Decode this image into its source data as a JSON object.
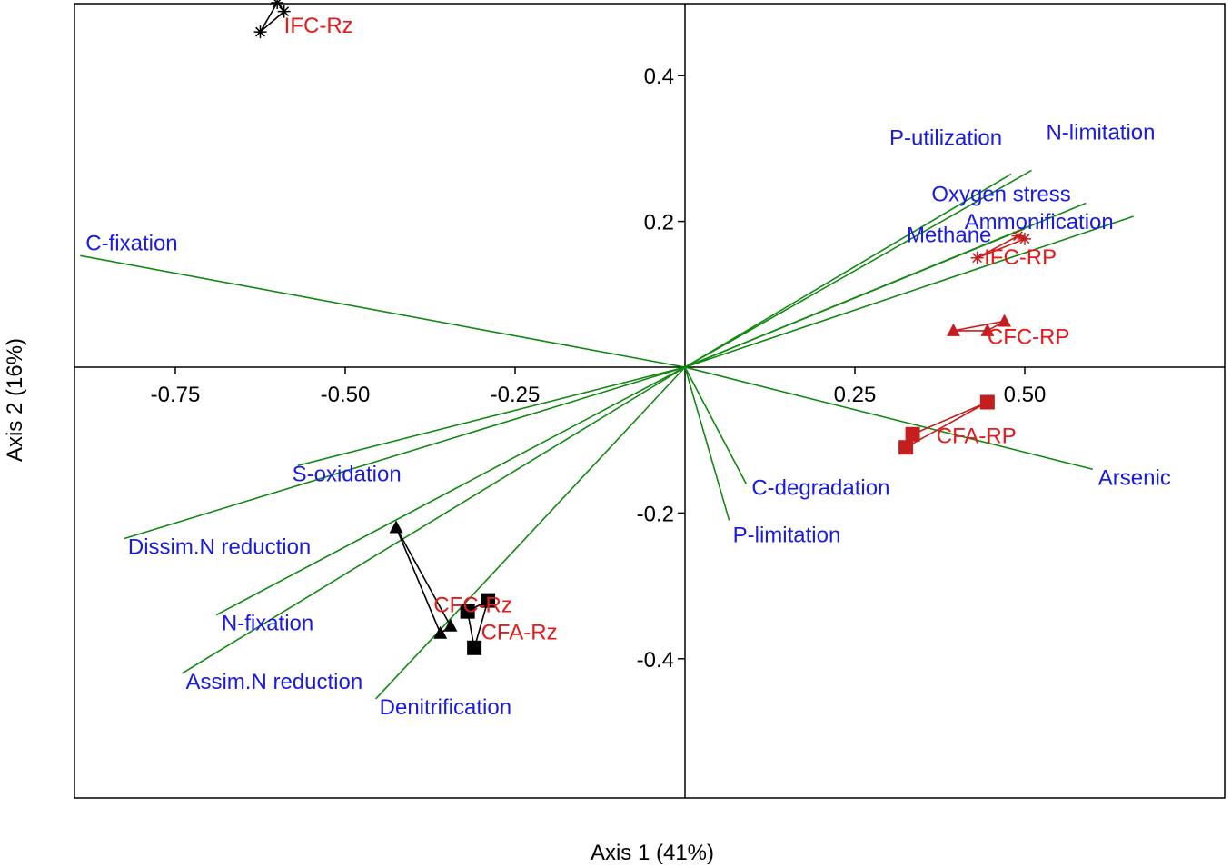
{
  "chart_data": {
    "type": "scatter",
    "subtype": "ordination biplot",
    "xlabel": "Axis 1 (41%)",
    "ylabel": "Axis 2 (16%)",
    "xlim": [
      -0.9,
      0.8
    ],
    "ylim": [
      -0.59,
      0.5
    ],
    "x_ticks": [
      {
        "value": -0.75,
        "label": "-0.75"
      },
      {
        "value": -0.5,
        "label": "-0.50"
      },
      {
        "value": -0.25,
        "label": "-0.25"
      },
      {
        "value": 0.25,
        "label": "0.25"
      },
      {
        "value": 0.5,
        "label": "0.50"
      }
    ],
    "y_ticks": [
      {
        "value": 0.4,
        "label": "0.4"
      },
      {
        "value": 0.2,
        "label": "0.2"
      },
      {
        "value": -0.2,
        "label": "-0.2"
      },
      {
        "value": -0.4,
        "label": "-0.4"
      }
    ],
    "colors": {
      "vector_line": "#118811",
      "vector_label": "#1a1ae6",
      "site_label": "#e61a1a",
      "rp_marker": "#c41e1e",
      "rz_marker": "#000000",
      "axis": "#000000"
    },
    "vectors": [
      {
        "name": "C-fixation",
        "x": -0.89,
        "y": 0.153
      },
      {
        "name": "P-utilization",
        "x": 0.48,
        "y": 0.265
      },
      {
        "name": "N-limitation",
        "x": 0.51,
        "y": 0.27
      },
      {
        "name": "Oxygen stress",
        "x": 0.59,
        "y": 0.225
      },
      {
        "name": "Ammonification",
        "x": 0.66,
        "y": 0.207
      },
      {
        "name": "Methane",
        "x": 0.5,
        "y": 0.19
      },
      {
        "name": "Arsenic",
        "x": 0.6,
        "y": -0.14
      },
      {
        "name": "C-degradation",
        "x": 0.09,
        "y": -0.16
      },
      {
        "name": "P-limitation",
        "x": 0.065,
        "y": -0.21
      },
      {
        "name": "S-oxidation",
        "x": -0.57,
        "y": -0.135
      },
      {
        "name": "Dissim.N reduction",
        "x": -0.825,
        "y": -0.235
      },
      {
        "name": "N-fixation",
        "x": -0.69,
        "y": -0.34
      },
      {
        "name": "Assim.N reduction",
        "x": -0.74,
        "y": -0.42
      },
      {
        "name": "Denitrification",
        "x": -0.455,
        "y": -0.455
      }
    ],
    "groups": [
      {
        "label": "IFC-Rz",
        "marker": "asterisk",
        "color": "#000000",
        "points": [
          [
            -0.625,
            0.46
          ],
          [
            -0.6,
            0.5
          ],
          [
            -0.59,
            0.488
          ]
        ],
        "label_at": [
          -0.59,
          0.47
        ]
      },
      {
        "label": "CFC-Rz",
        "marker": "triangle",
        "color": "#000000",
        "points": [
          [
            -0.425,
            -0.22
          ],
          [
            -0.36,
            -0.365
          ],
          [
            -0.345,
            -0.355
          ]
        ],
        "label_at": [
          -0.37,
          -0.325
        ]
      },
      {
        "label": "CFA-Rz",
        "marker": "square",
        "color": "#000000",
        "points": [
          [
            -0.32,
            -0.335
          ],
          [
            -0.31,
            -0.385
          ],
          [
            -0.29,
            -0.32
          ]
        ],
        "label_at": [
          -0.3,
          -0.362
        ]
      },
      {
        "label": "IFC-RP",
        "marker": "asterisk",
        "color": "#c41e1e",
        "points": [
          [
            0.43,
            0.15
          ],
          [
            0.49,
            0.18
          ],
          [
            0.5,
            0.176
          ]
        ],
        "label_at": [
          0.44,
          0.152
        ]
      },
      {
        "label": "CFC-RP",
        "marker": "triangle",
        "color": "#c41e1e",
        "points": [
          [
            0.395,
            0.05
          ],
          [
            0.445,
            0.05
          ],
          [
            0.47,
            0.063
          ]
        ],
        "label_at": [
          0.445,
          0.043
        ]
      },
      {
        "label": "CFA-RP",
        "marker": "square",
        "color": "#c41e1e",
        "points": [
          [
            0.325,
            -0.11
          ],
          [
            0.335,
            -0.092
          ],
          [
            0.445,
            -0.048
          ]
        ],
        "label_at": [
          0.37,
          -0.093
        ]
      }
    ]
  }
}
